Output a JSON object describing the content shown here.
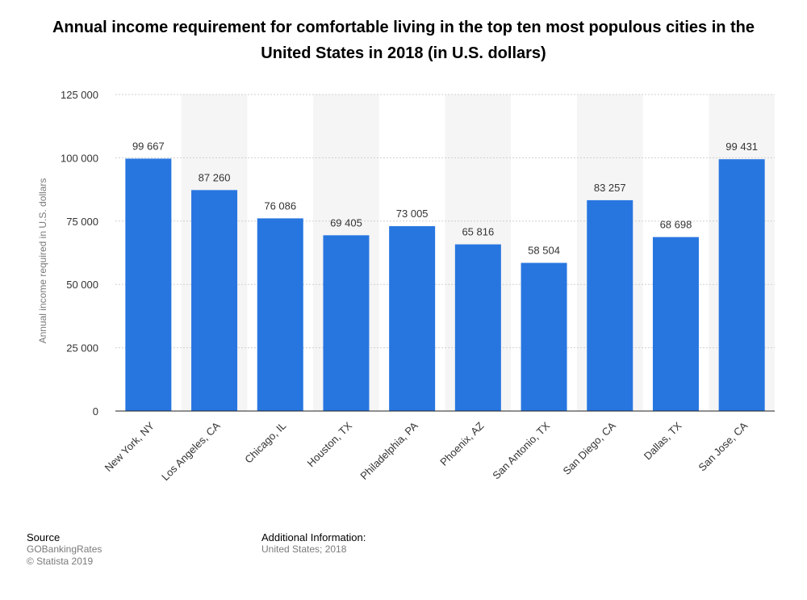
{
  "chart_data": {
    "type": "bar",
    "title": "Annual income requirement for comfortable living in the top ten most populous cities in the United States in 2018 (in U.S. dollars)",
    "ylabel": "Annual income required in U.S. dollars",
    "xlabel": "",
    "ylim": [
      0,
      125000
    ],
    "yticks": [
      0,
      25000,
      50000,
      75000,
      100000,
      125000
    ],
    "ytick_labels": [
      "0",
      "25 000",
      "50 000",
      "75 000",
      "100 000",
      "125 000"
    ],
    "categories": [
      "New York, NY",
      "Los Angeles, CA",
      "Chicago, IL",
      "Houston, TX",
      "Philadelphia, PA",
      "Phoenix, AZ",
      "San Antonio, TX",
      "San Diego, CA",
      "Dallas, TX",
      "San Jose, CA"
    ],
    "values": [
      99667,
      87260,
      76086,
      69405,
      73005,
      65816,
      58504,
      83257,
      68698,
      99431
    ],
    "value_labels": [
      "99 667",
      "87 260",
      "76 086",
      "69 405",
      "73 005",
      "65 816",
      "58 504",
      "83 257",
      "68 698",
      "99 431"
    ],
    "bar_color": "#2776e0",
    "grid": true
  },
  "footer": {
    "source_heading": "Source",
    "source_name": "GOBankingRates",
    "copyright": "© Statista 2019",
    "additional_heading": "Additional Information:",
    "additional_text": "United States; 2018"
  }
}
